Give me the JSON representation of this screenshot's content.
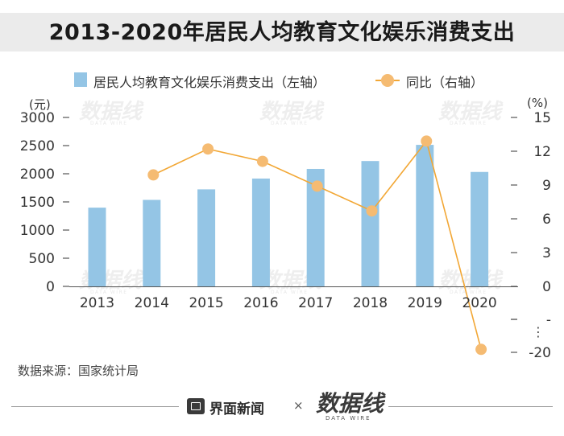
{
  "title": "2013-2020年居民人均教育文化娱乐消费支出",
  "legend": {
    "bar_label": "居民人均教育文化娱乐消费支出（左轴）",
    "line_label": "同比（右轴）"
  },
  "units": {
    "left": "(元)",
    "right": "(%)"
  },
  "colors": {
    "bar": "#94c5e5",
    "line": "#f2a735",
    "marker": "#f5bb72"
  },
  "chart_data": {
    "type": "bar",
    "categories": [
      "2013",
      "2014",
      "2015",
      "2016",
      "2017",
      "2018",
      "2019",
      "2020"
    ],
    "series": [
      {
        "name": "居民人均教育文化娱乐消费支出（左轴）",
        "type": "bar",
        "axis": "left",
        "values": [
          1398,
          1536,
          1723,
          1915,
          2086,
          2226,
          2513,
          2032
        ]
      },
      {
        "name": "同比（右轴）",
        "type": "line",
        "axis": "right",
        "values": [
          null,
          9.9,
          12.2,
          11.1,
          8.9,
          6.7,
          12.9,
          -19.1
        ]
      }
    ],
    "y_left": {
      "min": 0,
      "max": 3000,
      "ticks": [
        "0",
        "500",
        "1000",
        "1500",
        "2000",
        "2500",
        "3000"
      ]
    },
    "y_right": {
      "ticks": [
        "15",
        "12",
        "9",
        "6",
        "3",
        "0",
        "-",
        "-20"
      ],
      "break_label": "⋮",
      "note": "axis break between 0 and -20"
    },
    "grid": false,
    "legend_position": "top"
  },
  "source": "数据来源：国家统计局",
  "footer": {
    "logo1": "界面新闻",
    "times": "×",
    "logo2": "数据线",
    "logo2_sub": "DATA WIRE"
  },
  "watermark": {
    "text": "数据线",
    "sub": "DATA WIRE"
  }
}
